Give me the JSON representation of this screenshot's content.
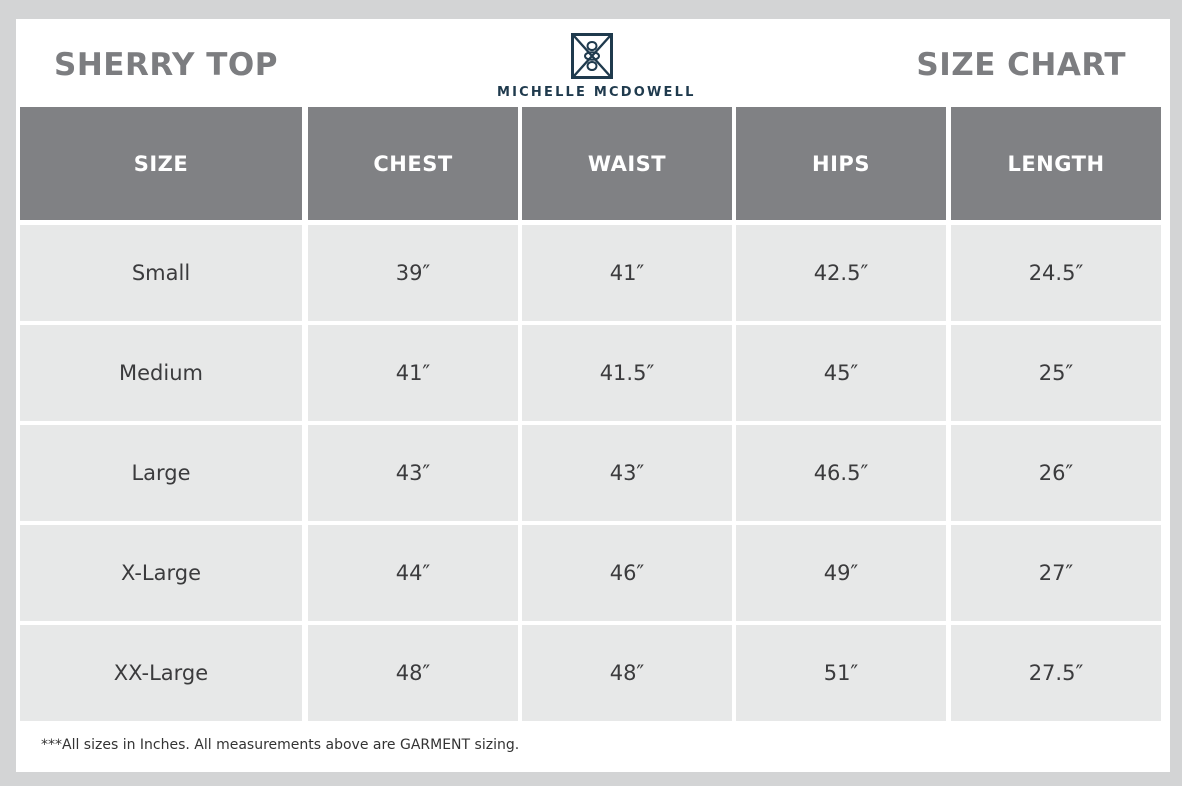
{
  "header": {
    "product_title": "SHERRY TOP",
    "chart_title": "SIZE CHART",
    "brand": "MICHELLE MCDOWELL",
    "logo_icon": "diamond-knot-logo"
  },
  "table": {
    "columns": [
      "SIZE",
      "CHEST",
      "WAIST",
      "HIPS",
      "LENGTH"
    ],
    "rows": [
      [
        "Small",
        "39″",
        "41″",
        "42.5″",
        "24.5″"
      ],
      [
        "Medium",
        "41″",
        "41.5″",
        "45″",
        "25″"
      ],
      [
        "Large",
        "43″",
        "43″",
        "46.5″",
        "26″"
      ],
      [
        "X-Large",
        "44″",
        "46″",
        "49″",
        "27″"
      ],
      [
        "XX-Large",
        "48″",
        "48″",
        "51″",
        "27.5″"
      ]
    ]
  },
  "footnote": "***All sizes in Inches. All measurements above are GARMENT sizing.",
  "colors": {
    "page_background": "#d3d4d5",
    "header_cell": "#808184",
    "body_cell": "#e7e8e8",
    "title_gray": "#7c7d80",
    "brand_navy": "#1f3a4d"
  }
}
